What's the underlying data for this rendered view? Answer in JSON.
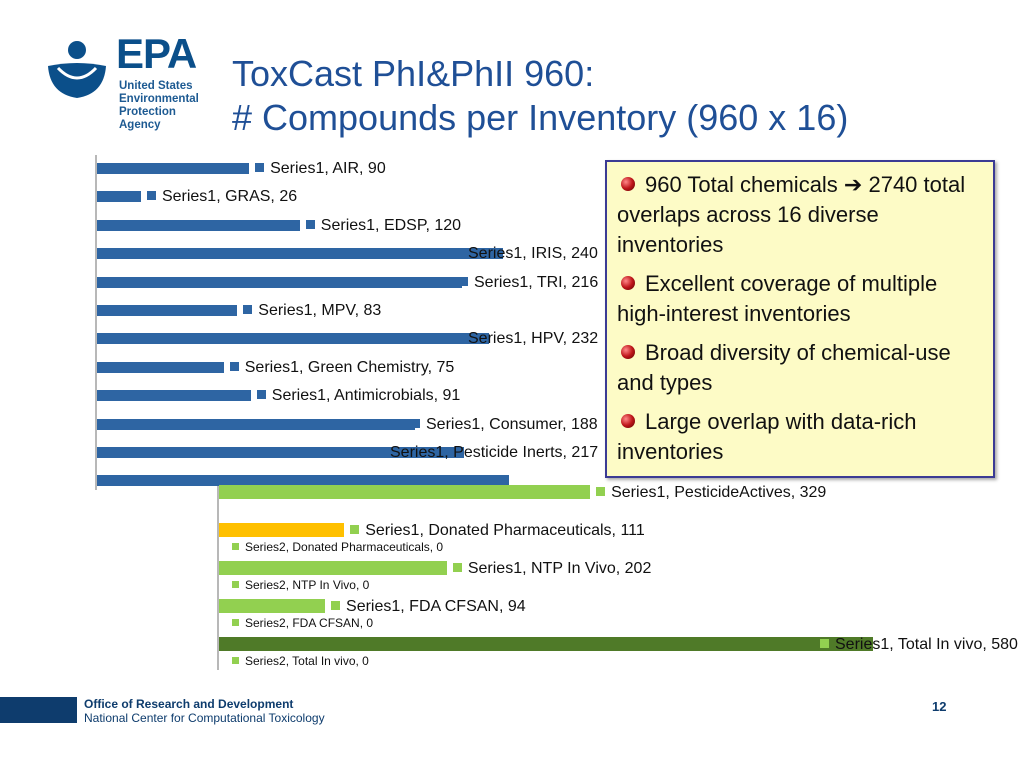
{
  "logo": {
    "text": "EPA",
    "subtitle": [
      "United States",
      "Environmental Protection",
      "Agency"
    ]
  },
  "title": {
    "line1": "ToxCast PhI&PhII 960:",
    "line2": "# Compounds per Inventory (960 x 16)"
  },
  "callout": {
    "bullets": [
      "960 Total chemicals ➔ 2740 total overlaps across 16 diverse inventories",
      "Excellent coverage of multiple high-interest inventories",
      "Broad diversity of chemical-use and types",
      "Large overlap with data-rich inventories"
    ]
  },
  "chart_data": [
    {
      "type": "bar",
      "orientation": "horizontal",
      "series": [
        {
          "name": "Series1",
          "color": "#2e65a3"
        }
      ],
      "categories": [
        "AIR",
        "GRAS",
        "EDSP",
        "IRIS",
        "TRI",
        "MPV",
        "HPV",
        "Green Chemistry",
        "Antimicrobials",
        "Consumer",
        "Pesticide Inerts",
        ""
      ],
      "values": [
        90,
        26,
        120,
        240,
        216,
        83,
        232,
        75,
        91,
        188,
        217,
        244
      ],
      "data_labels": [
        "Series1, AIR, 90",
        "Series1, GRAS, 26",
        "Series1, EDSP, 120",
        "Series1, IRIS, 240",
        "Series1, TRI, 216",
        "Series1, MPV, 83",
        "Series1, HPV, 232",
        "Series1, Green Chemistry, 75",
        "Series1, Antimicrobials, 91",
        "Series1, Consumer, 188",
        "Series1, Pesticide Inerts, 217",
        ""
      ]
    },
    {
      "type": "bar",
      "orientation": "horizontal",
      "categories": [
        "PesticideActives",
        "Donated Pharmaceuticals",
        "NTP In Vivo",
        "FDA CFSAN",
        "Total In vivo"
      ],
      "series": [
        {
          "name": "Series1",
          "values": [
            329,
            111,
            202,
            94,
            580
          ],
          "colors": [
            "#92d050",
            "#ffc000",
            "#92d050",
            "#92d050",
            "#4f7a28"
          ]
        },
        {
          "name": "Series2",
          "values": [
            null,
            0,
            0,
            0,
            0
          ]
        }
      ],
      "data_labels": [
        "Series1, PesticideActives, 329",
        "Series1, Donated Pharmaceuticals, 111",
        "Series1, NTP In Vivo, 202",
        "Series1, FDA CFSAN, 94",
        "Series1, Total In vivo, 580"
      ],
      "series2_labels": [
        "Series2, Donated Pharmaceuticals, 0",
        "Series2, NTP In Vivo, 0",
        "Series2, FDA CFSAN, 0",
        "Series2, Total In vivo, 0"
      ],
      "label_color": "#92d050"
    }
  ],
  "footer": {
    "line1": "Office of Research and Development",
    "line2": "National Center for Computational Toxicology",
    "page": "12"
  }
}
